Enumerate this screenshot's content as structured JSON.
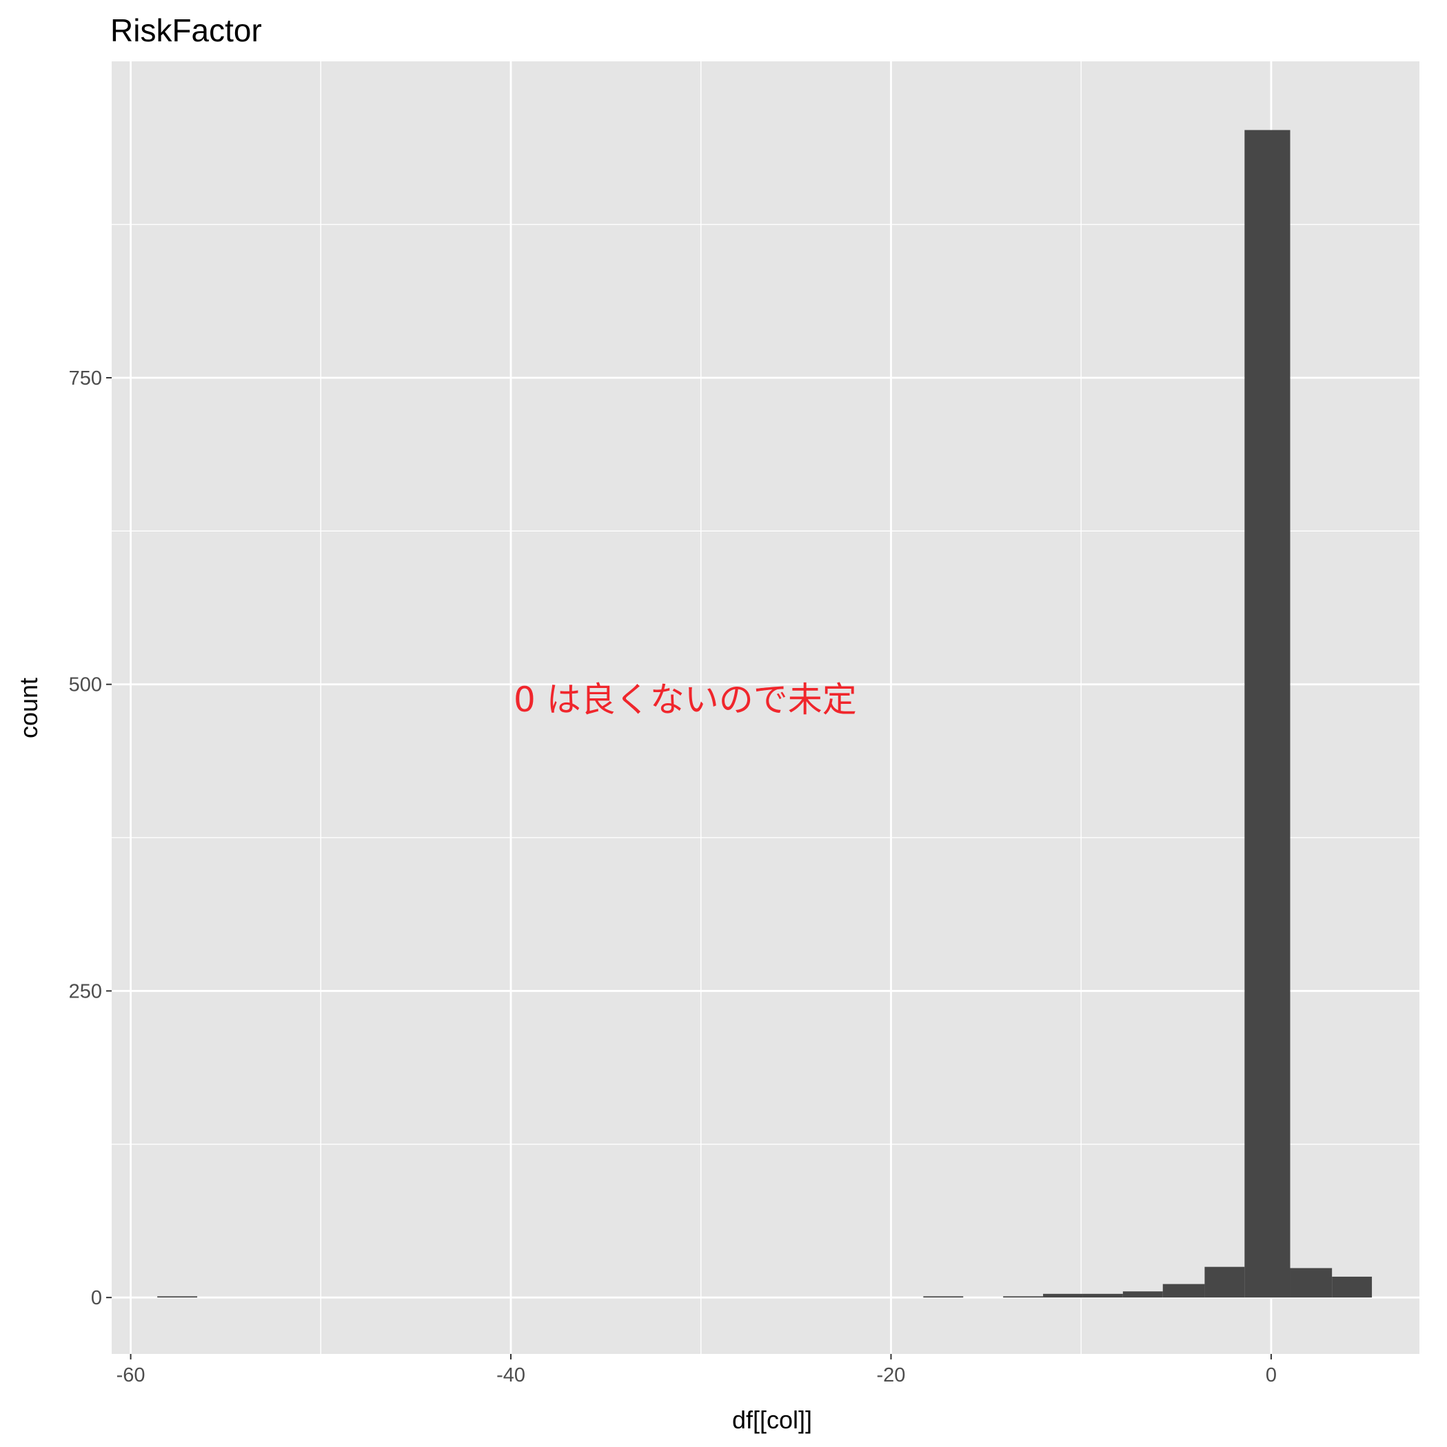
{
  "chart_data": {
    "type": "bar",
    "title": "RiskFactor",
    "xlabel": "df[[col]]",
    "ylabel": "count",
    "xlim": [
      -61,
      7.8
    ],
    "ylim": [
      -46,
      1008
    ],
    "x_ticks": [
      -60,
      -40,
      -20,
      0
    ],
    "x_tick_labels": [
      "-60",
      "-40",
      "-20",
      "0"
    ],
    "x_minor_ticks": [
      -50,
      -30,
      -10
    ],
    "y_ticks": [
      0,
      250,
      500,
      750
    ],
    "y_tick_labels": [
      "0",
      "250",
      "500",
      "750"
    ],
    "y_minor_ticks": [
      125,
      375,
      625,
      875
    ],
    "bin_width": 2.12,
    "bins": [
      {
        "start": -58.6,
        "end": -56.5,
        "count": 1
      },
      {
        "start": -18.3,
        "end": -16.2,
        "count": 1
      },
      {
        "start": -14.1,
        "end": -12.0,
        "count": 1
      },
      {
        "start": -12.0,
        "end": -9.9,
        "count": 3
      },
      {
        "start": -9.9,
        "end": -7.8,
        "count": 3
      },
      {
        "start": -7.8,
        "end": -5.7,
        "count": 5
      },
      {
        "start": -5.7,
        "end": -3.5,
        "count": 11
      },
      {
        "start": -3.5,
        "end": -1.4,
        "count": 25
      },
      {
        "start": -1.4,
        "end": 1.0,
        "count": 952
      },
      {
        "start": 1.0,
        "end": 3.2,
        "count": 24
      },
      {
        "start": 3.2,
        "end": 5.3,
        "count": 17
      }
    ],
    "bar_color": "#474747",
    "panel_color": "#e5e5e5",
    "grid": true,
    "grid_color": "#ffffff",
    "annotation": {
      "text": "0 は良くないので未定",
      "color": "#f0262c"
    }
  }
}
